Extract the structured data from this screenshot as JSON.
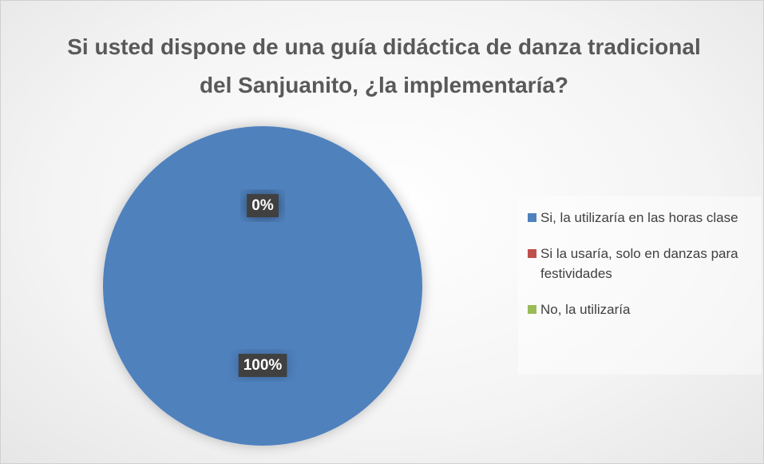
{
  "chart_data": {
    "type": "pie",
    "title": "Si usted dispone de una guía didáctica de danza tradicional del Sanjuanito, ¿la implementaría?",
    "categories": [
      "Si, la utilizaría en las horas clase",
      "Si la usaría, solo en danzas para festividades",
      "No, la utilizaría"
    ],
    "values": [
      100,
      0,
      0
    ],
    "value_labels": [
      "100%",
      "0%",
      "0%"
    ],
    "colors": [
      "#4f81bd",
      "#c0504d",
      "#9bbb59"
    ],
    "legend": "right"
  }
}
